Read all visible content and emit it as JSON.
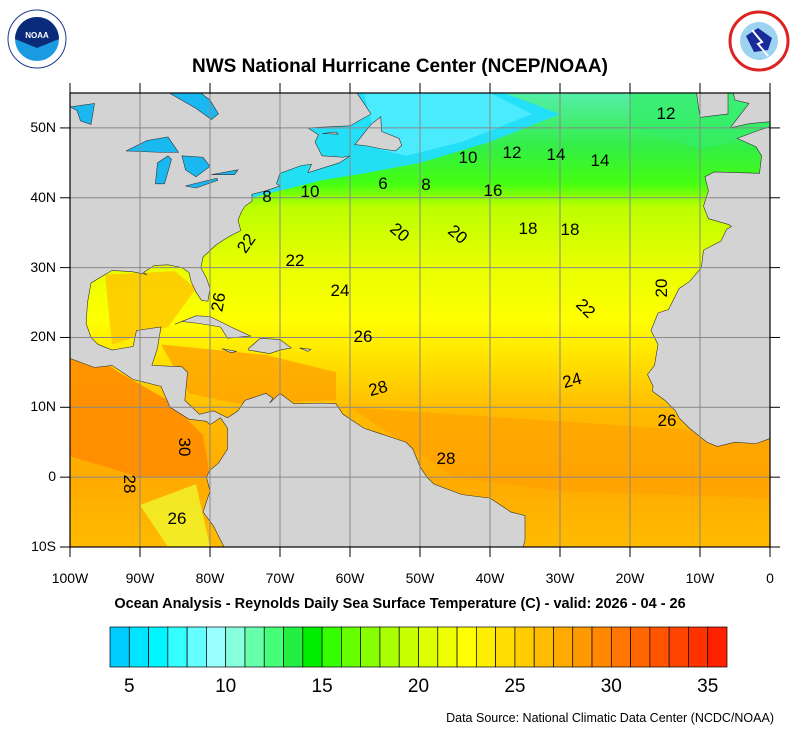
{
  "header": {
    "title": "NWS National Hurricane Center (NCEP/NOAA)",
    "left_logo": "NOAA",
    "right_logo": "NATIONAL WEATHER SERVICE"
  },
  "map": {
    "lon_labels": [
      "100W",
      "90W",
      "80W",
      "70W",
      "60W",
      "50W",
      "40W",
      "30W",
      "20W",
      "10W",
      "0"
    ],
    "lat_labels": [
      "50N",
      "40N",
      "30N",
      "20N",
      "10N",
      "0",
      "10S"
    ],
    "extent": {
      "lon": [
        -100,
        0
      ],
      "lat": [
        -10,
        55
      ]
    },
    "land_color": "#d3d3d3",
    "contour_labels": [
      "12",
      "10",
      "12",
      "14",
      "14",
      "8",
      "10",
      "6",
      "8",
      "16",
      "22",
      "20",
      "20",
      "18",
      "18",
      "22",
      "24",
      "26",
      "20",
      "22",
      "26",
      "28",
      "24",
      "26",
      "30",
      "28",
      "28",
      "26"
    ]
  },
  "subtitle": "Ocean Analysis - Reynolds Daily Sea Surface Temperature (C) - valid: 2026 - 04 - 26",
  "colorbar": {
    "bounds": [
      4,
      36
    ],
    "labels": [
      "5",
      "10",
      "15",
      "20",
      "25",
      "30",
      "35"
    ],
    "colors": [
      "#00ccff",
      "#00e5ff",
      "#00f5ff",
      "#33ffff",
      "#66ffff",
      "#99ffff",
      "#88ffdd",
      "#66ffaa",
      "#44ff77",
      "#22ee44",
      "#00ee00",
      "#33ff00",
      "#66ff00",
      "#88ff00",
      "#aaff00",
      "#c8ff00",
      "#ddff00",
      "#eeff00",
      "#ffff00",
      "#ffee00",
      "#ffdd00",
      "#ffcc00",
      "#ffbb00",
      "#ffaa00",
      "#ff9900",
      "#ff8800",
      "#ff7700",
      "#ff6600",
      "#ff5500",
      "#ff4400",
      "#ff3300",
      "#ff2200"
    ]
  },
  "footer": {
    "source": "Data Source: National Climatic Data Center (NCDC/NOAA)"
  }
}
